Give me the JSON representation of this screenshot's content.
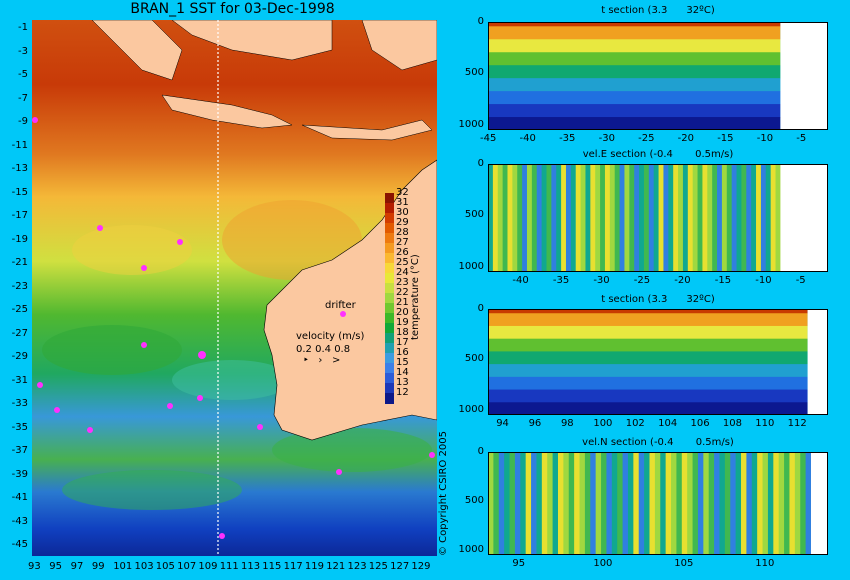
{
  "title": "BRAN_1 SST for 03-Dec-1998",
  "copyright": "© Copyright CSIRO 2005",
  "drifter_label": "drifter",
  "velocity_label": "velocity (m/s)",
  "velocity_scale": [
    "0.2",
    "0.4",
    "0.8"
  ],
  "colorbar": {
    "label": "temperature (°C)",
    "ticks": [
      "32",
      "31",
      "30",
      "29",
      "28",
      "27",
      "26",
      "25",
      "24",
      "23",
      "22",
      "21",
      "20",
      "19",
      "18",
      "17",
      "16",
      "15",
      "14",
      "13",
      "12"
    ],
    "colors": [
      "#8a1400",
      "#b41e00",
      "#d23c00",
      "#e25a00",
      "#ee7a10",
      "#f59a20",
      "#fbb830",
      "#f8d838",
      "#e8e838",
      "#c8e040",
      "#a0d840",
      "#70c830",
      "#3cb828",
      "#10a838",
      "#10a078",
      "#20a0b0",
      "#3c9ce0",
      "#3c80e8",
      "#2c5cd8",
      "#1c38b8",
      "#0c1888"
    ]
  },
  "map": {
    "y_ticks": [
      "-1",
      "-3",
      "-5",
      "-7",
      "-9",
      "-11",
      "-13",
      "-15",
      "-17",
      "-19",
      "-21",
      "-23",
      "-25",
      "-27",
      "-29",
      "-31",
      "-33",
      "-35",
      "-37",
      "-39",
      "-41",
      "-43",
      "-45"
    ],
    "x_ticks": [
      "93",
      "95",
      "97",
      "99",
      "101",
      "103",
      "105",
      "107",
      "109",
      "111",
      "113",
      "115",
      "117",
      "119",
      "121",
      "123",
      "125",
      "127",
      "129"
    ]
  },
  "chart_data": [
    {
      "type": "heatmap",
      "title": "t section (3.3      32ºC)",
      "y_ticks": [
        "0",
        "500",
        "1000"
      ],
      "x_ticks": [
        "-45",
        "-40",
        "-35",
        "-30",
        "-25",
        "-20",
        "-15",
        "-10",
        "-5"
      ],
      "xlim": [
        -45,
        -2
      ],
      "ylim": [
        1050,
        0
      ]
    },
    {
      "type": "heatmap",
      "title": "vel.E section (-0.4       0.5m/s)",
      "y_ticks": [
        "0",
        "500",
        "1000"
      ],
      "x_ticks": [
        "-40",
        "-35",
        "-30",
        "-25",
        "-20",
        "-15",
        "-10",
        "-5"
      ],
      "xlim": [
        -44,
        -2
      ],
      "ylim": [
        1050,
        0
      ]
    },
    {
      "type": "heatmap",
      "title": "t section (3.3      32ºC)",
      "y_ticks": [
        "0",
        "500",
        "1000"
      ],
      "x_ticks": [
        "94",
        "96",
        "98",
        "100",
        "102",
        "104",
        "106",
        "108",
        "110",
        "112"
      ],
      "xlim": [
        93,
        114
      ],
      "ylim": [
        1050,
        0
      ]
    },
    {
      "type": "heatmap",
      "title": "vel.N section (-0.4       0.5m/s)",
      "y_ticks": [
        "0",
        "500",
        "1000"
      ],
      "x_ticks": [
        "95",
        "100",
        "105",
        "110"
      ],
      "xlim": [
        93,
        114
      ],
      "ylim": [
        1050,
        0
      ]
    }
  ]
}
